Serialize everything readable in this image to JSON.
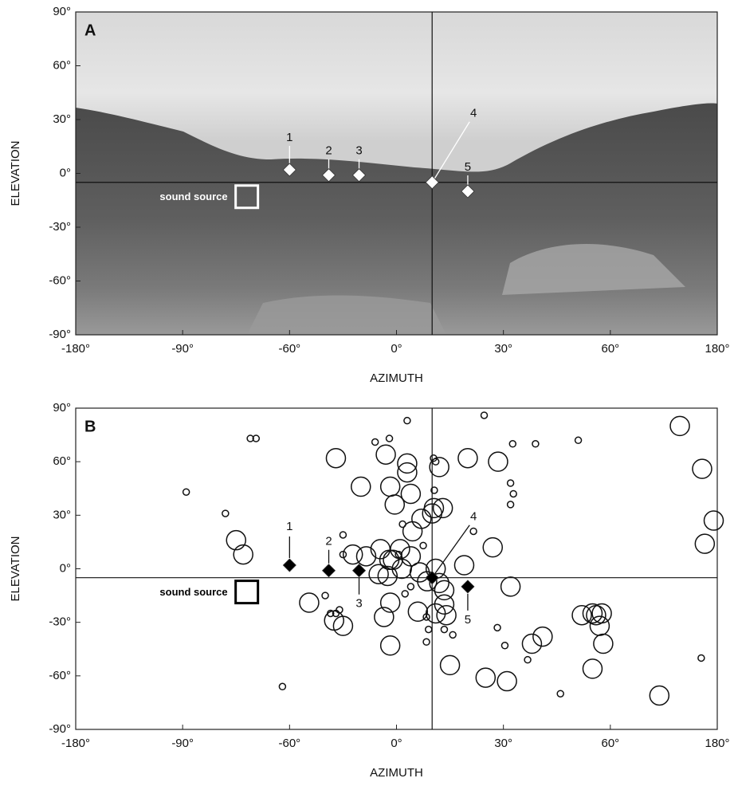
{
  "chart_data": [
    {
      "type": "scatter",
      "panel_label": "A",
      "xlabel": "AZIMUTH",
      "ylabel": "ELEVATION",
      "xlim": [
        -180,
        180
      ],
      "ylim": [
        -90,
        90
      ],
      "xticks": [
        {
          "value": -180,
          "label": "-180°"
        },
        {
          "value": -90,
          "label": "-90°"
        },
        {
          "value": -60,
          "label": "-60°"
        },
        {
          "value": 0,
          "label": "0°"
        },
        {
          "value": 30,
          "label": "30°"
        },
        {
          "value": 60,
          "label": "60°"
        },
        {
          "value": 180,
          "label": "180°"
        }
      ],
      "yticks": [
        {
          "value": 90,
          "label": "90°"
        },
        {
          "value": 60,
          "label": "60°"
        },
        {
          "value": 30,
          "label": "30°"
        },
        {
          "value": 0,
          "label": "0°"
        },
        {
          "value": -30,
          "label": "-30°"
        },
        {
          "value": -60,
          "label": "-60°"
        },
        {
          "value": -90,
          "label": "-90°"
        }
      ],
      "hline": -5,
      "vline": 10,
      "marker_color": "#ffffff",
      "markers": {
        "labels": [
          "1",
          "2",
          "3",
          "4",
          "5"
        ],
        "x": [
          -60,
          -38,
          -21,
          10,
          20
        ],
        "y": [
          2,
          -1,
          -1,
          -5,
          -10
        ]
      },
      "sound_source": {
        "label": "sound source",
        "x": -72,
        "y": -13,
        "color": "#ffffff"
      }
    },
    {
      "type": "scatter",
      "panel_label": "B",
      "xlabel": "AZIMUTH",
      "ylabel": "ELEVATION",
      "xlim": [
        -180,
        180
      ],
      "ylim": [
        -90,
        90
      ],
      "xticks": [
        {
          "value": -180,
          "label": "-180°"
        },
        {
          "value": -90,
          "label": "-90°"
        },
        {
          "value": -60,
          "label": "-60°"
        },
        {
          "value": 0,
          "label": "0°"
        },
        {
          "value": 30,
          "label": "30°"
        },
        {
          "value": 60,
          "label": "60°"
        },
        {
          "value": 180,
          "label": "180°"
        }
      ],
      "yticks": [
        {
          "value": 90,
          "label": "90°"
        },
        {
          "value": 60,
          "label": "60°"
        },
        {
          "value": 30,
          "label": "30°"
        },
        {
          "value": 0,
          "label": "0°"
        },
        {
          "value": -30,
          "label": "-30°"
        },
        {
          "value": -60,
          "label": "-60°"
        },
        {
          "value": -90,
          "label": "-90°"
        }
      ],
      "hline": -5,
      "vline": 10,
      "marker_color": "#000000",
      "markers": {
        "labels": [
          "1",
          "2",
          "3",
          "4",
          "5"
        ],
        "x": [
          -60,
          -38,
          -21,
          10,
          20
        ],
        "y": [
          2,
          -1,
          -1,
          -5,
          -10
        ]
      },
      "sound_source": {
        "label": "sound source",
        "x": -72,
        "y": -13,
        "color": "#000000"
      },
      "points": {
        "x": [
          -75,
          -73,
          -34,
          -20,
          -6,
          3,
          3,
          -3.5,
          -1,
          4,
          7,
          4.5,
          10,
          12,
          10.5,
          13,
          20,
          28.5,
          27,
          19,
          4,
          1.5,
          -4,
          -9,
          -17,
          -24.5,
          -10,
          -5,
          -2,
          1,
          6.5,
          8.6,
          12,
          11,
          13.4,
          13.4,
          14,
          11,
          6,
          -3.5,
          -7,
          -3.5,
          -30,
          -35,
          -49,
          32,
          38,
          41,
          52,
          55,
          56,
          57.6,
          57,
          58,
          55,
          25,
          31,
          15,
          115,
          138,
          163,
          166,
          176,
          -89,
          -78,
          -71,
          -69.4,
          -62,
          -12,
          -4,
          3,
          24.6,
          32.6,
          39,
          51,
          32,
          32.8,
          32,
          21.6,
          10.4,
          11,
          10.6,
          -30,
          -30,
          -40,
          -37,
          -34,
          -32,
          28.3,
          30.4,
          36.8,
          46,
          162,
          8.4,
          9,
          15.8,
          13.4,
          8.4,
          2.4,
          4,
          0.6,
          1.7,
          7.5
        ],
        "y": [
          16,
          8,
          62,
          46,
          64,
          59,
          54,
          46,
          36,
          42,
          28,
          21,
          31,
          57,
          34,
          34,
          62,
          60,
          12,
          2,
          7,
          0,
          5,
          11,
          7,
          8,
          -3,
          -4,
          5,
          11,
          -2,
          -7,
          -8,
          0,
          -12,
          -20,
          -26,
          -25,
          -24,
          -19,
          -27,
          -43,
          -32,
          -29,
          -19,
          -10,
          -42,
          -38,
          -26,
          -25,
          -26,
          -25,
          -32,
          -42,
          -56,
          -61,
          -63,
          -54,
          -71,
          80,
          56,
          14,
          27,
          43,
          31,
          73,
          73,
          -66,
          71,
          73,
          83,
          86,
          70,
          70,
          72,
          48,
          42,
          36,
          21,
          62,
          60,
          44,
          19,
          8,
          -15,
          -25,
          -25,
          -23,
          -33,
          -43,
          -51,
          -70,
          -50,
          -27,
          -34,
          -37,
          -34,
          -41,
          -14,
          -10,
          8,
          25,
          13
        ],
        "sizes": [
          3,
          3,
          3,
          3,
          3,
          3,
          3,
          3,
          3,
          3,
          3,
          3,
          3,
          3,
          3,
          3,
          3,
          3,
          3,
          3,
          3,
          3,
          3,
          3,
          3,
          3,
          3,
          3,
          3,
          3,
          3,
          3,
          3,
          3,
          3,
          3,
          3,
          3,
          3,
          3,
          3,
          3,
          3,
          3,
          3,
          3,
          3,
          3,
          3,
          3,
          3,
          3,
          3,
          3,
          3,
          3,
          3,
          3,
          3,
          3,
          3,
          3,
          3,
          1,
          1,
          1,
          1,
          1,
          1,
          1,
          1,
          1,
          1,
          1,
          1,
          1,
          1,
          1,
          1,
          1,
          1,
          1,
          1,
          1,
          1,
          1,
          1,
          1,
          1,
          1,
          1,
          1,
          1,
          1,
          1,
          1,
          1,
          1,
          1,
          1,
          1,
          1,
          1
        ]
      }
    }
  ]
}
